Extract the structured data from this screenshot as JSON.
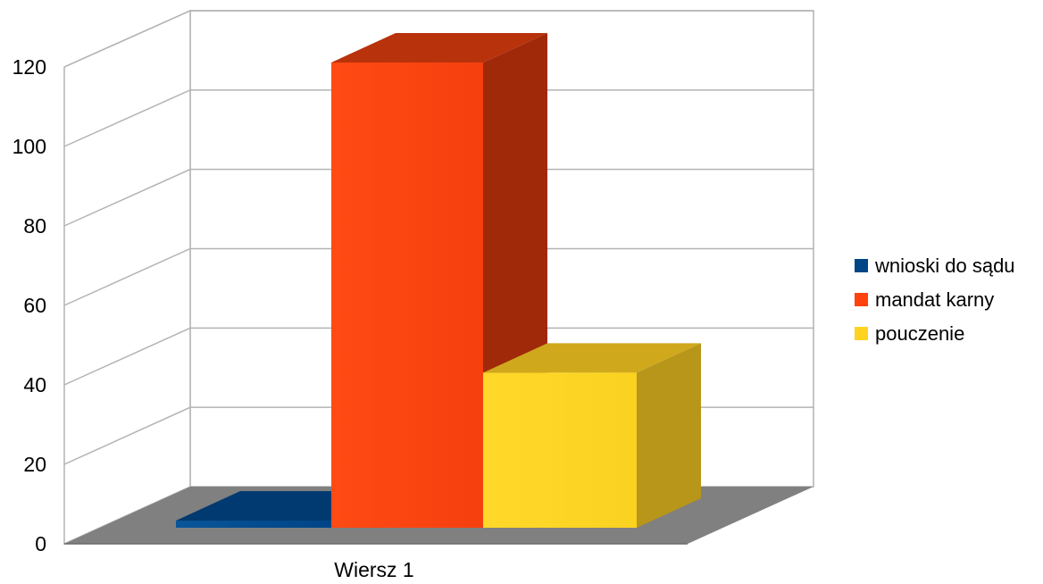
{
  "chart_data": {
    "type": "bar",
    "title": "",
    "xlabel": "",
    "ylabel": "",
    "categories": [
      "Wiersz 1"
    ],
    "series": [
      {
        "name": "wnioski do sądu",
        "values": [
          1
        ],
        "color": "#004586"
      },
      {
        "name": "mandat karny",
        "values": [
          120
        ],
        "color": "#ff420e"
      },
      {
        "name": "pouczenie",
        "values": [
          40
        ],
        "color": "#ffd320"
      }
    ],
    "ylim": [
      0,
      120
    ],
    "yticks": [
      "0",
      "20",
      "40",
      "60",
      "80",
      "100",
      "120"
    ],
    "grid": true,
    "legend": "right",
    "floor_color": "#808080"
  }
}
